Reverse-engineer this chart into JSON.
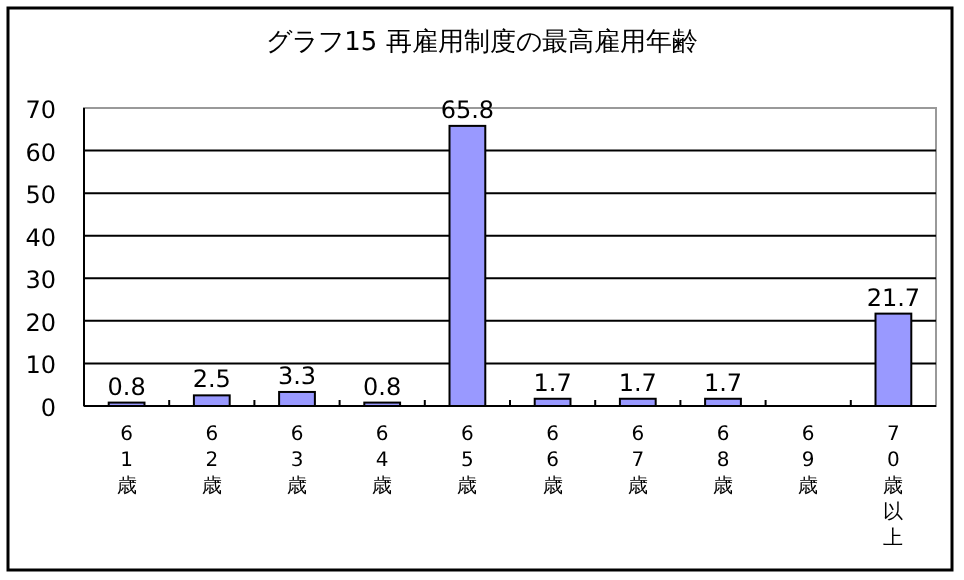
{
  "chart_data": {
    "type": "bar",
    "title": "グラフ15  再雇用制度の最高雇用年齢",
    "categories": [
      "61歳",
      "62歳",
      "63歳",
      "64歳",
      "65歳",
      "66歳",
      "67歳",
      "68歳",
      "69歳",
      "70歳以上"
    ],
    "values": [
      0.8,
      2.5,
      3.3,
      0.8,
      65.8,
      1.7,
      1.7,
      1.7,
      null,
      21.7
    ],
    "color": "#9999ff",
    "ylim": [
      0,
      70
    ],
    "yticks": [
      0,
      10,
      20,
      30,
      40,
      50,
      60,
      70
    ],
    "grid": "y",
    "data_labels": true
  }
}
